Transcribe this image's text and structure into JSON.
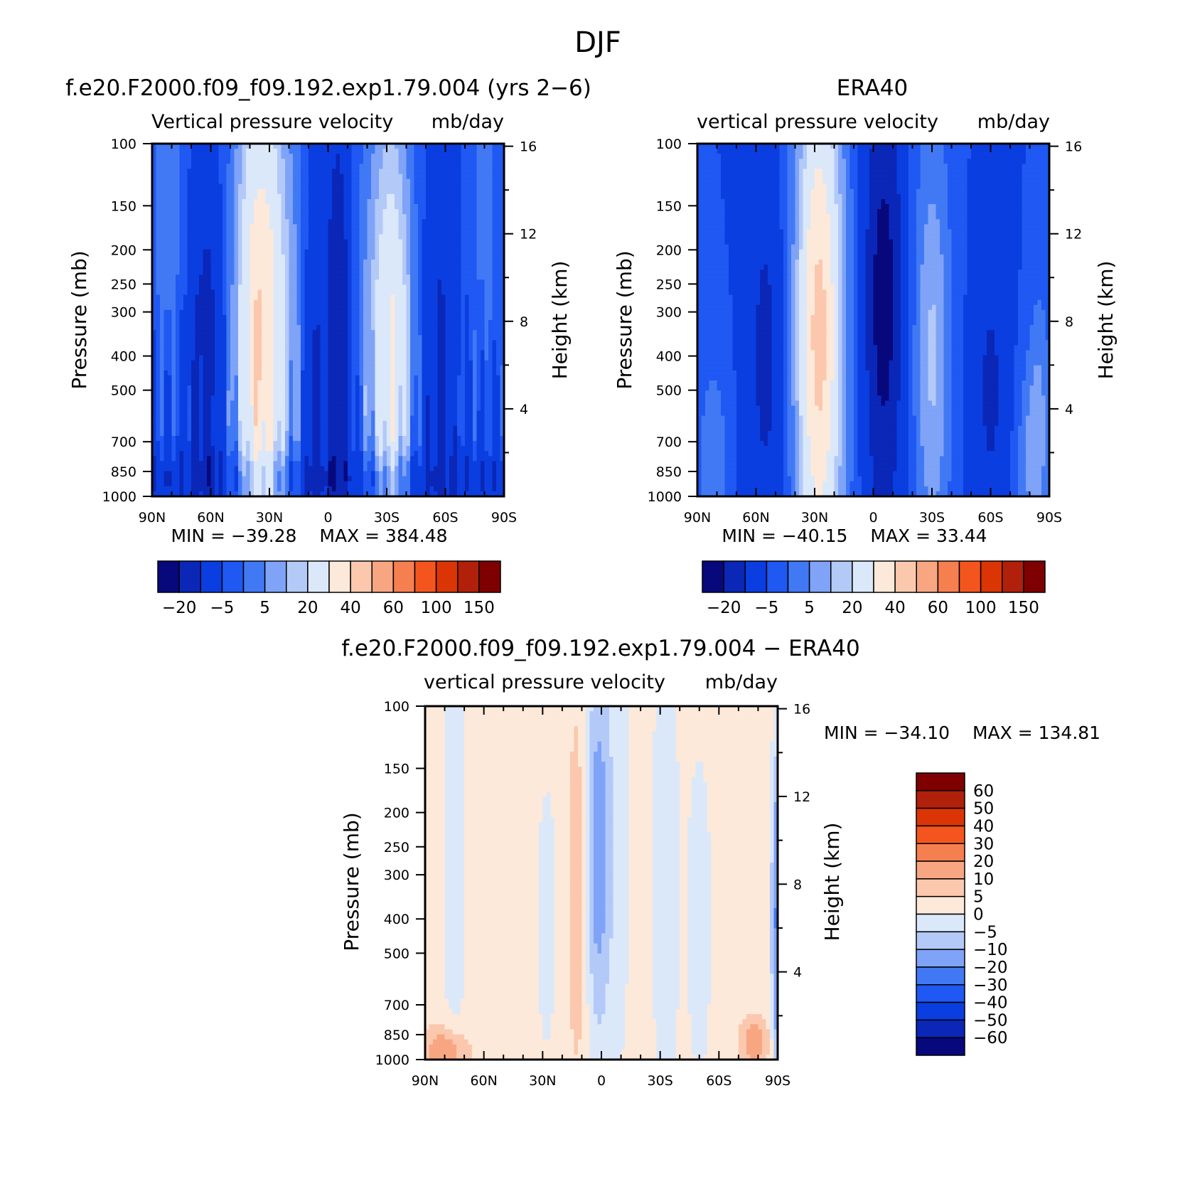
{
  "figure": {
    "season_title": "DJF"
  },
  "chart_data": [
    {
      "type": "heatmap",
      "id": "model",
      "case_title": "f.e20.F2000.f09_f09.192.exp1.79.004 (yrs 2−6)",
      "variable_title": "Vertical pressure velocity",
      "units": "mb/day",
      "ylabel_left": "Pressure (mb)",
      "ylabel_right": "Height (km)",
      "x_tick_labels": [
        "90N",
        "60N",
        "30N",
        "0",
        "30S",
        "60S",
        "90S"
      ],
      "x_ticks_deg": [
        90,
        60,
        30,
        0,
        -30,
        -60,
        -90
      ],
      "y_ticks_mb": [
        100,
        150,
        200,
        250,
        300,
        400,
        500,
        700,
        850,
        1000
      ],
      "height_ticks_km": [
        4,
        8,
        12,
        16
      ],
      "xlim": [
        90,
        -90
      ],
      "ylim_mb": [
        1000,
        100
      ],
      "y_scale": "log",
      "min_label": "MIN = −39.28",
      "max_label": "MAX = 384.48",
      "stats": {
        "min": -39.28,
        "max": 384.48
      },
      "contour_levels": [
        -30,
        -20,
        -10,
        -5,
        0,
        5,
        10,
        20,
        30,
        40,
        50,
        60,
        80,
        100,
        120,
        150
      ],
      "colorbar_labels": [
        "−20",
        "−5",
        "5",
        "20",
        "40",
        "60",
        "100",
        "150"
      ],
      "colorbar_orientation": "horizontal",
      "color_scale": [
        "#08087d",
        "#0a27b8",
        "#0b3ee0",
        "#1f58f2",
        "#4179f5",
        "#7fa3f7",
        "#b3c9f8",
        "#dbe8fa",
        "#fde9d9",
        "#fbc8ae",
        "#f8a682",
        "#f67f4f",
        "#f4551e",
        "#db3506",
        "#b1200a",
        "#7f0000"
      ]
    },
    {
      "type": "heatmap",
      "id": "obs",
      "case_title": "ERA40",
      "variable_title": "vertical pressure velocity",
      "units": "mb/day",
      "ylabel_left": "Pressure (mb)",
      "ylabel_right": "Height (km)",
      "x_tick_labels": [
        "90N",
        "60N",
        "30N",
        "0",
        "30S",
        "60S",
        "90S"
      ],
      "x_ticks_deg": [
        90,
        60,
        30,
        0,
        -30,
        -60,
        -90
      ],
      "y_ticks_mb": [
        100,
        150,
        200,
        250,
        300,
        400,
        500,
        700,
        850,
        1000
      ],
      "height_ticks_km": [
        4,
        8,
        12,
        16
      ],
      "xlim": [
        90,
        -90
      ],
      "ylim_mb": [
        1000,
        100
      ],
      "y_scale": "log",
      "min_label": "MIN = −40.15",
      "max_label": "MAX =  33.44",
      "stats": {
        "min": -40.15,
        "max": 33.44
      },
      "contour_levels": [
        -30,
        -20,
        -10,
        -5,
        0,
        5,
        10,
        20,
        30,
        40,
        50,
        60,
        80,
        100,
        120,
        150
      ],
      "colorbar_labels": [
        "−20",
        "−5",
        "5",
        "20",
        "40",
        "60",
        "100",
        "150"
      ],
      "colorbar_orientation": "horizontal",
      "color_scale": [
        "#08087d",
        "#0a27b8",
        "#0b3ee0",
        "#1f58f2",
        "#4179f5",
        "#7fa3f7",
        "#b3c9f8",
        "#dbe8fa",
        "#fde9d9",
        "#fbc8ae",
        "#f8a682",
        "#f67f4f",
        "#f4551e",
        "#db3506",
        "#b1200a",
        "#7f0000"
      ]
    },
    {
      "type": "heatmap",
      "id": "diff",
      "case_title": "f.e20.F2000.f09_f09.192.exp1.79.004 − ERA40",
      "variable_title": "vertical pressure velocity",
      "units": "mb/day",
      "ylabel_left": "Pressure (mb)",
      "ylabel_right": "Height (km)",
      "x_tick_labels": [
        "90N",
        "60N",
        "30N",
        "0",
        "30S",
        "60S",
        "90S"
      ],
      "x_ticks_deg": [
        90,
        60,
        30,
        0,
        -30,
        -60,
        -90
      ],
      "y_ticks_mb": [
        100,
        150,
        200,
        250,
        300,
        400,
        500,
        700,
        850,
        1000
      ],
      "height_ticks_km": [
        4,
        8,
        12,
        16
      ],
      "xlim": [
        90,
        -90
      ],
      "ylim_mb": [
        1000,
        100
      ],
      "y_scale": "log",
      "min_label": "MIN = −34.10",
      "max_label": "MAX = 134.81",
      "stats": {
        "min": -34.1,
        "max": 134.81
      },
      "contour_levels": [
        -60,
        -50,
        -40,
        -30,
        -20,
        -10,
        -5,
        0,
        5,
        10,
        20,
        30,
        40,
        50,
        60
      ],
      "colorbar_labels": [
        "60",
        "50",
        "40",
        "30",
        "20",
        "10",
        "5",
        "0",
        "−5",
        "−10",
        "−20",
        "−30",
        "−40",
        "−50",
        "−60"
      ],
      "colorbar_orientation": "vertical",
      "color_scale": [
        "#7f0000",
        "#b1200a",
        "#db3506",
        "#f4551e",
        "#f67f4f",
        "#f8a682",
        "#fbc8ae",
        "#fde9d9",
        "#dbe8fa",
        "#b3c9f8",
        "#7fa3f7",
        "#4179f5",
        "#1f58f2",
        "#0b3ee0",
        "#0a27b8",
        "#08087d"
      ]
    }
  ]
}
